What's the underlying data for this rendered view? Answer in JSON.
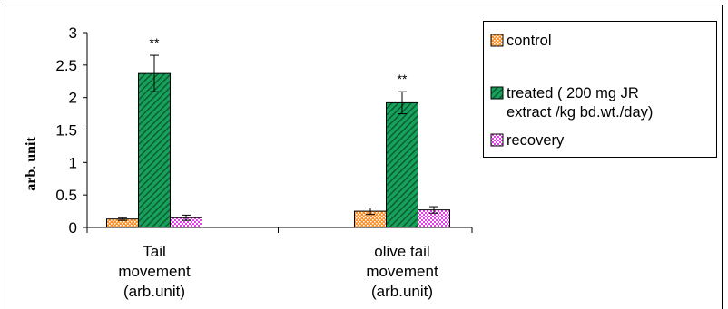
{
  "chart_data": {
    "type": "bar",
    "title": "",
    "xlabel": "",
    "ylabel": "arb. unit",
    "ylim": [
      0,
      3
    ],
    "yticks": [
      "0",
      "0.5",
      "1",
      "1.5",
      "2",
      "2.5",
      "3"
    ],
    "grid": false,
    "legend_position": "right",
    "categories": [
      [
        "Tail",
        "movement",
        "(arb.unit)"
      ],
      [
        "olive tail",
        "movement",
        "(arb.unit)"
      ]
    ],
    "series": [
      {
        "name": "control",
        "legend_lines": [
          "control"
        ],
        "values": [
          0.13,
          0.25
        ],
        "errors": [
          0.02,
          0.05
        ],
        "color": "#f7922e",
        "pattern": "dots"
      },
      {
        "name": "treated ( 200 mg JR extract /kg bd.wt./day)",
        "legend_lines": [
          "treated ( 200 mg JR",
          "extract /kg bd.wt./day)"
        ],
        "values": [
          2.37,
          1.92
        ],
        "errors": [
          0.28,
          0.17
        ],
        "color": "#17a25c",
        "pattern": "stripes"
      },
      {
        "name": "recovery",
        "legend_lines": [
          "recovery"
        ],
        "values": [
          0.15,
          0.27
        ],
        "errors": [
          0.04,
          0.05
        ],
        "color": "#e23ee8",
        "pattern": "checks"
      }
    ],
    "annotations": [
      {
        "category_index": 0,
        "series_index": 1,
        "text": "**"
      },
      {
        "category_index": 1,
        "series_index": 1,
        "text": "**"
      }
    ]
  }
}
